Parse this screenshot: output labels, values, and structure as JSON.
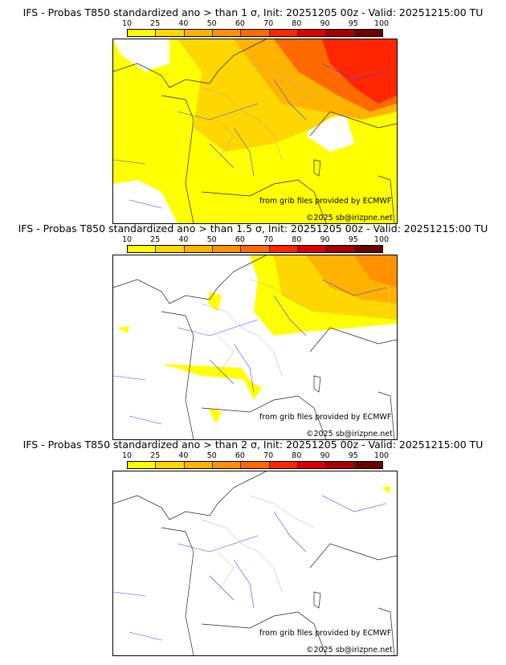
{
  "colorbar": {
    "ticks": [
      "10",
      "25",
      "40",
      "50",
      "60",
      "70",
      "80",
      "90",
      "95",
      "100"
    ],
    "colors": [
      "#ffff00",
      "#ffd700",
      "#ffb300",
      "#ff9100",
      "#ff6a00",
      "#ff2600",
      "#dc0000",
      "#a60000",
      "#6b0000"
    ]
  },
  "panels": [
    {
      "title": "IFS - Probas T850  standardized ano > than 1 σ, Init: 20251205 00z - Valid: 20251215:00 TU",
      "source": "from grib files provided by ECMWF",
      "copyright": "©2025 sb@irizpne.net",
      "level": 1
    },
    {
      "title": "IFS - Probas T850  standardized ano > than 1.5 σ, Init: 20251205 00z - Valid: 20251215:00 TU",
      "source": "from grib files provided by ECMWF",
      "copyright": "©2025 sb@irizpne.net",
      "level": 2
    },
    {
      "title": "IFS - Probas T850  standardized ano > than 2 σ, Init: 20251205 00z - Valid: 20251215:00 TU",
      "source": "from grib files provided by ECMWF",
      "copyright": "©2025 sb@irizpne.net",
      "level": 3
    }
  ]
}
